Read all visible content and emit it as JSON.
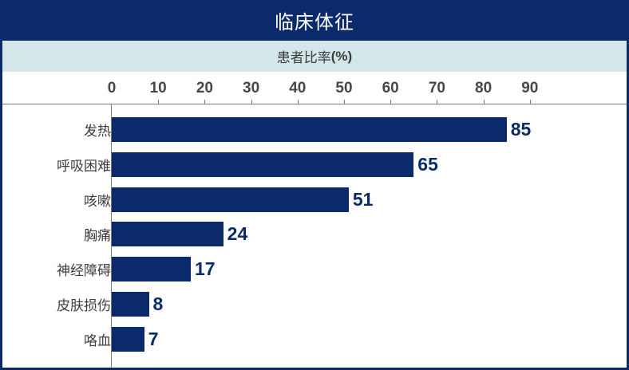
{
  "title": "临床体征",
  "subtitle": {
    "text": "患者比率",
    "unit": "(%)"
  },
  "colors": {
    "navy": "#0b2a6b",
    "subtitle_bg": "#d3e6e9",
    "axis": "#7a7a7a",
    "label_text": "#3c3c3c",
    "tick_text": "#474747"
  },
  "axis": {
    "ticks": [
      "0",
      "10",
      "20",
      "30",
      "40",
      "50",
      "60",
      "70",
      "80",
      "90"
    ]
  },
  "rows": [
    {
      "label": "发热",
      "value": "85"
    },
    {
      "label": "呼吸困难",
      "value": "65"
    },
    {
      "label": "咳嗽",
      "value": "51"
    },
    {
      "label": "胸痛",
      "value": "24"
    },
    {
      "label": "神经障碍",
      "value": "17"
    },
    {
      "label": "皮肤损伤",
      "value": "8"
    },
    {
      "label": "咯血",
      "value": "7"
    }
  ],
  "chart_data": {
    "type": "bar",
    "orientation": "horizontal",
    "title": "临床体征",
    "subtitle": "患者比率(%)",
    "categories": [
      "发热",
      "呼吸困难",
      "咳嗽",
      "胸痛",
      "神经障碍",
      "皮肤损伤",
      "咯血"
    ],
    "values": [
      85,
      65,
      51,
      24,
      17,
      8,
      7
    ],
    "xlabel": "患者比率(%)",
    "ylabel": "",
    "xlim": [
      0,
      100
    ],
    "x_ticks": [
      0,
      10,
      20,
      30,
      40,
      50,
      60,
      70,
      80,
      90
    ],
    "x_axis_position": "top",
    "grid": false,
    "legend": null,
    "data_labels": true,
    "bar_color": "#0b2a6b"
  }
}
